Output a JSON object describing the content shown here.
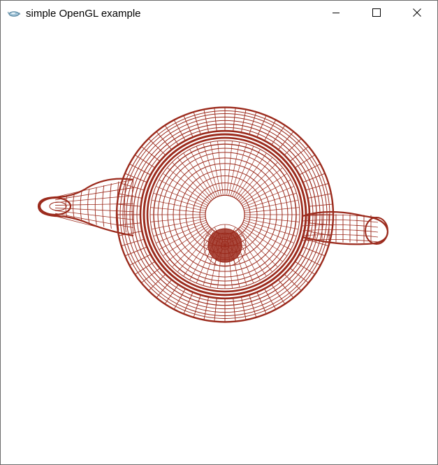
{
  "window": {
    "title": "simple OpenGL example",
    "icon": "opengl-teapot-app-icon",
    "controls": {
      "minimize_icon": "minimize-icon",
      "maximize_icon": "maximize-icon",
      "close_icon": "close-icon"
    }
  },
  "scene": {
    "object": "wireframe-teapot",
    "view": "top",
    "wire_color": "#9b2a1c",
    "background_color": "#ffffff"
  }
}
